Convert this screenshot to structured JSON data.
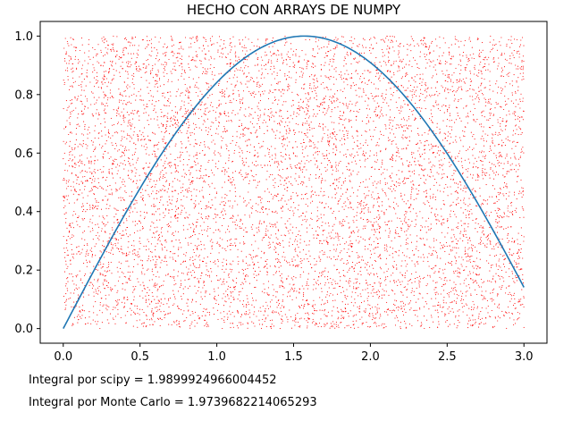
{
  "chart_data": {
    "type": "scatter",
    "title": "HECHO CON ARRAYS DE NUMPY",
    "xlabel": "",
    "ylabel": "",
    "xlim": [
      -0.15,
      3.15
    ],
    "ylim": [
      -0.05,
      1.05
    ],
    "x_ticks": [
      0.0,
      0.5,
      1.0,
      1.5,
      2.0,
      2.5,
      3.0
    ],
    "x_tick_labels": [
      "0.0",
      "0.5",
      "1.0",
      "1.5",
      "2.0",
      "2.5",
      "3.0"
    ],
    "y_ticks": [
      0.0,
      0.2,
      0.4,
      0.6,
      0.8,
      1.0
    ],
    "y_tick_labels": [
      "0.0",
      "0.2",
      "0.4",
      "0.6",
      "0.8",
      "1.0"
    ],
    "grid": false,
    "series": [
      {
        "name": "sin(x)",
        "kind": "line",
        "function": "sin",
        "x_range": [
          0,
          3
        ],
        "color": "#1f77b4"
      },
      {
        "name": "random points",
        "kind": "scatter",
        "distribution": "uniform",
        "x_range": [
          0,
          3
        ],
        "y_range": [
          0,
          1
        ],
        "approx_count": 8000,
        "color": "#ff0000"
      }
    ],
    "annotations": [
      "Integral por scipy = 1.9899924966004452",
      "Integral por Monte Carlo = 1.9739682214065293"
    ]
  }
}
